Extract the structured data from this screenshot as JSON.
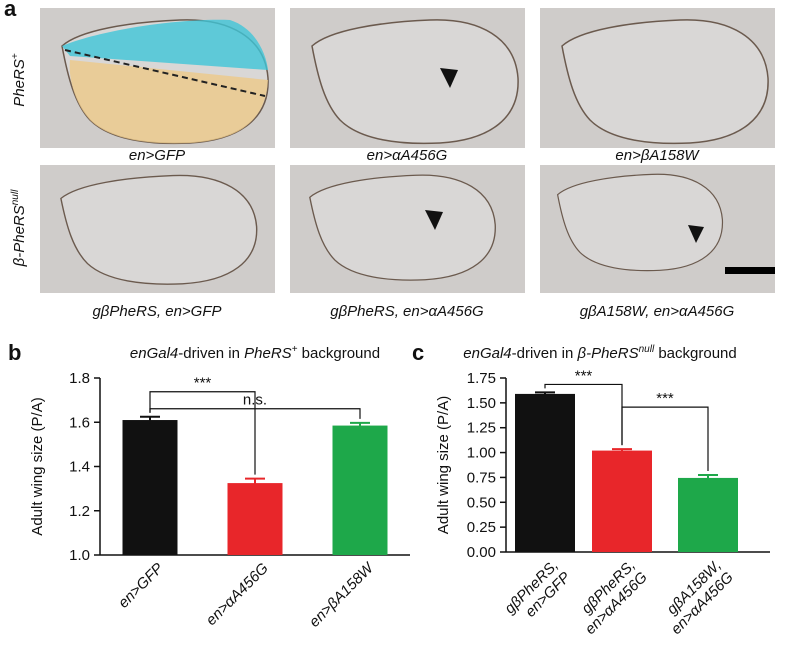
{
  "panel_a": {
    "label": "a",
    "rows": [
      {
        "name": "PheRS",
        "sup": "+"
      },
      {
        "name": "β-PheRS",
        "sup": "null"
      }
    ],
    "captions": [
      "en>GFP",
      "en>αA456G",
      "en>βA158W",
      "gβPheRS, en>GFP",
      "gβPheRS, en>αA456G",
      "gβA158W, en>αA456G"
    ]
  },
  "chart_data": [
    {
      "type": "bar",
      "panel": "b",
      "title": [
        "enGal4",
        "-driven in ",
        "PheRS",
        "+",
        " background"
      ],
      "ylabel": "Adult wing size (P/A)",
      "categories": [
        [
          "en>GFP"
        ],
        [
          "en>αA456G"
        ],
        [
          "en>βA158W"
        ]
      ],
      "values": [
        1.61,
        1.325,
        1.585
      ],
      "errors": [
        0.015,
        0.02,
        0.012
      ],
      "colors": [
        "#111111",
        "#e8262a",
        "#1ea84a"
      ],
      "ylim": [
        1.0,
        1.8
      ],
      "yticks": [
        {
          "value": 1,
          "label": "1.0"
        },
        1.2,
        1.4,
        1.6,
        1.8
      ],
      "annotations": [
        "***",
        "n.s."
      ]
    },
    {
      "type": "bar",
      "panel": "c",
      "title": [
        "enGal4",
        "-driven in ",
        "β-PheRS",
        "null",
        " background"
      ],
      "ylabel": "Adult wing size (P/A)",
      "categories": [
        [
          "gβPheRS,",
          "en>GFP"
        ],
        [
          "gβPheRS,",
          "en>αA456G"
        ],
        [
          "gβA158W,",
          "en>αA456G"
        ]
      ],
      "values": [
        1.59,
        1.02,
        0.745
      ],
      "errors": [
        0.015,
        0.015,
        0.03
      ],
      "colors": [
        "#111111",
        "#e8262a",
        "#1ea84a"
      ],
      "ylim": [
        0,
        1.75
      ],
      "yticks": [
        {
          "value": 0,
          "label": "0.00"
        },
        0.25,
        {
          "value": 0.5,
          "label": "0.50"
        },
        0.75,
        {
          "value": 1,
          "label": "1.00"
        },
        1.25,
        {
          "value": 1.5,
          "label": "1.50"
        },
        1.75
      ],
      "annotations": [
        "***",
        "***"
      ]
    }
  ]
}
